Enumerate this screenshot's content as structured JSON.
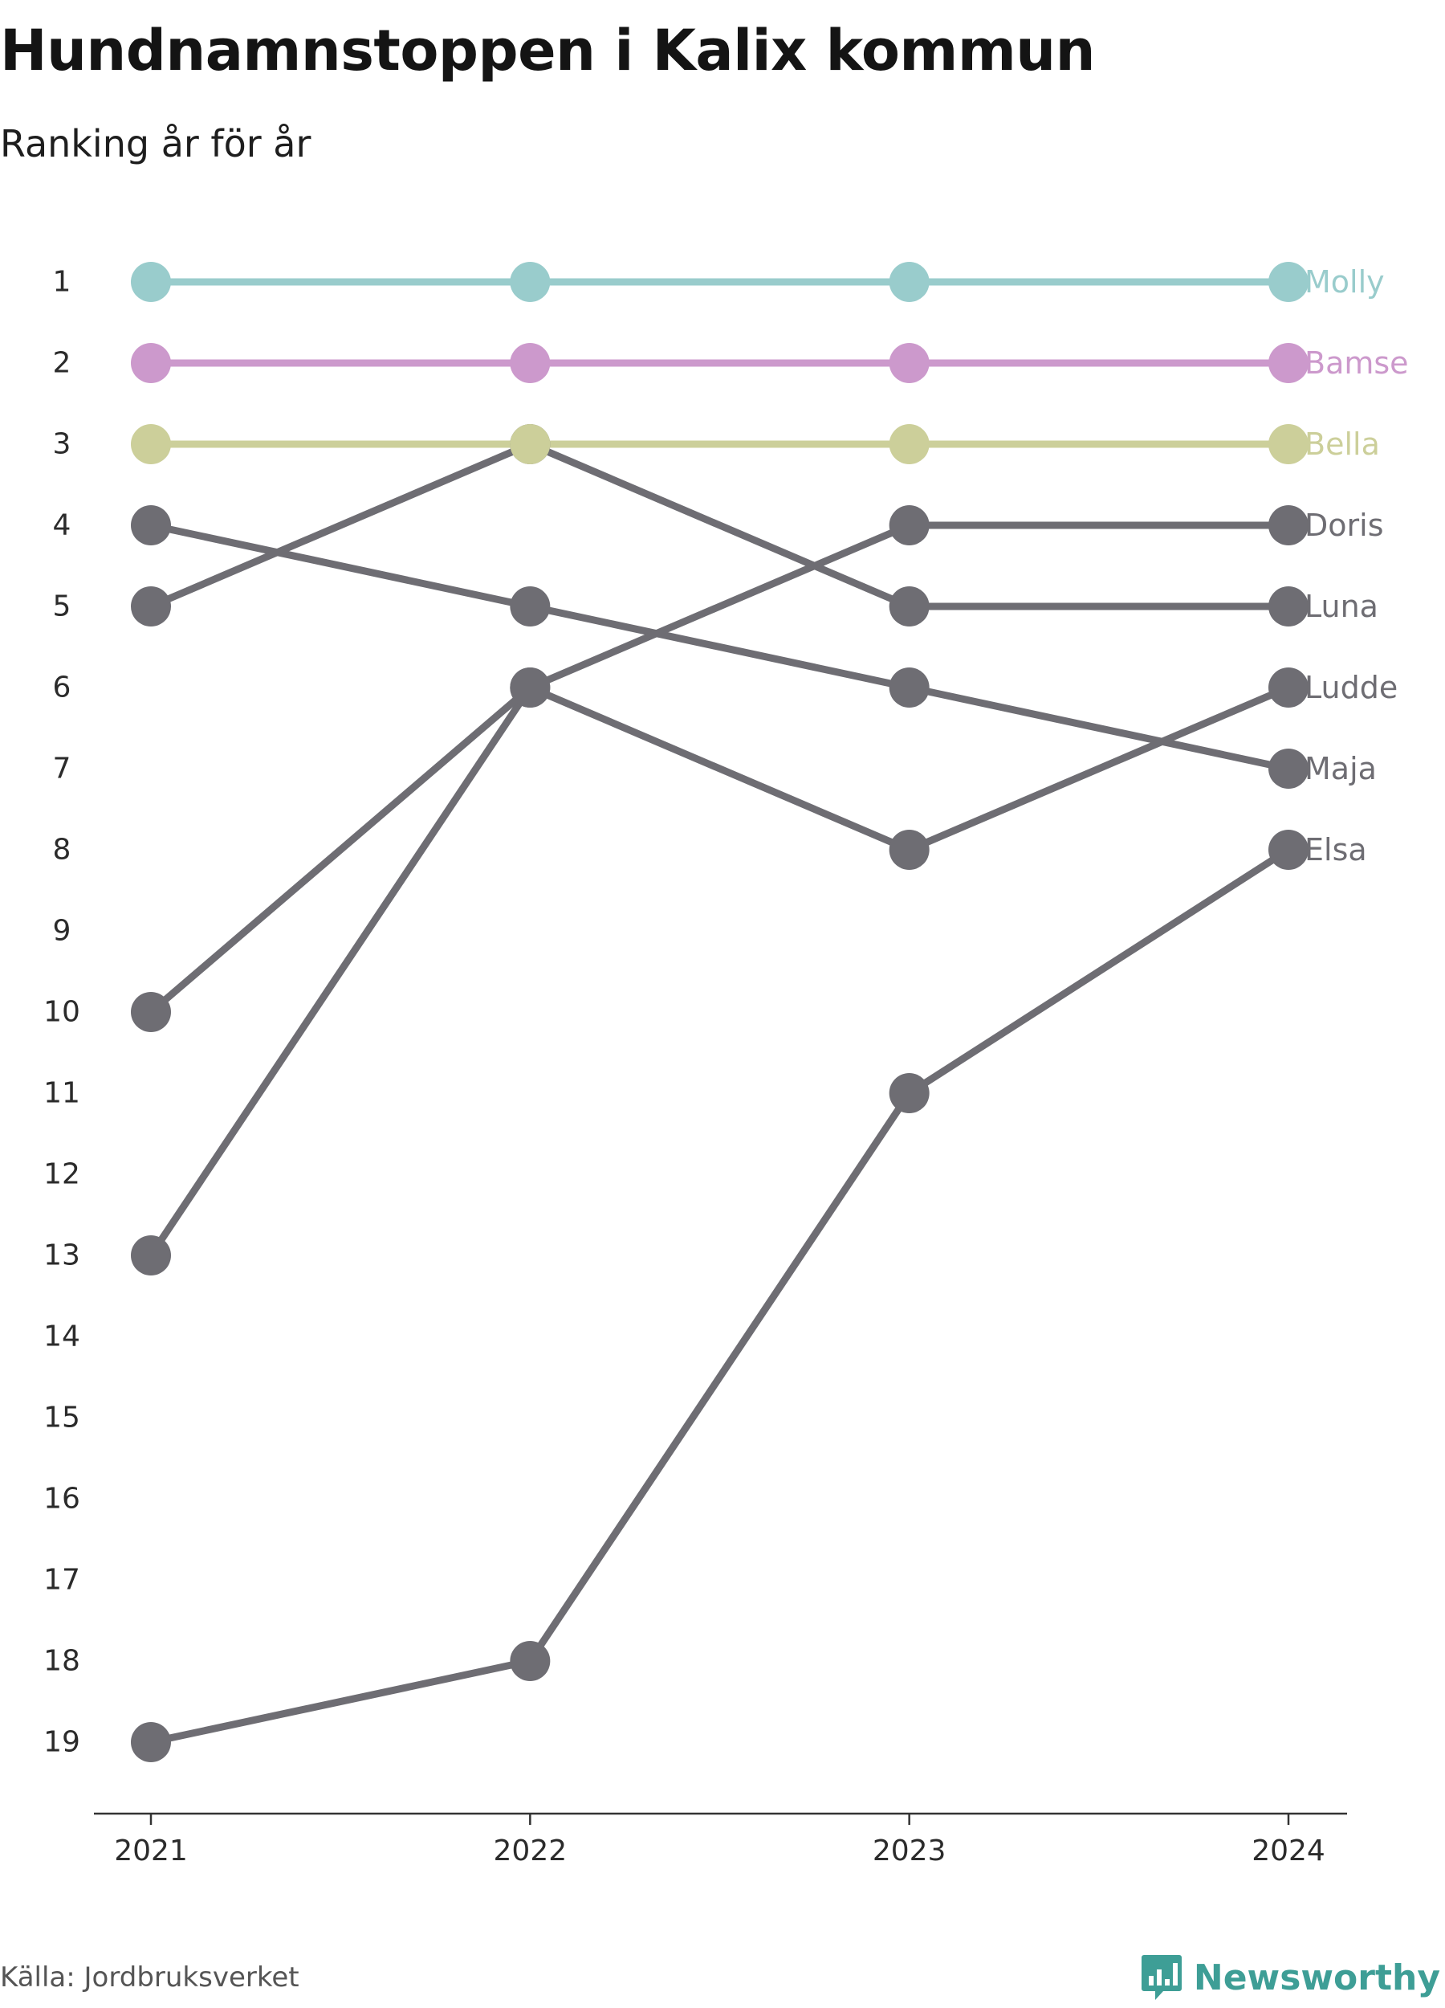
{
  "header": {
    "title": "Hundnamnstoppen i Kalix kommun",
    "subtitle": "Ranking år för år"
  },
  "footer": {
    "source": "Källa: Jordbruksverket",
    "brand": "Newsworthy",
    "brand_color": "#3e9e96"
  },
  "chart_data": {
    "type": "line",
    "x": [
      "2021",
      "2022",
      "2023",
      "2024"
    ],
    "ylim": [
      1,
      19
    ],
    "y_inverted": true,
    "y_ticks": [
      1,
      2,
      3,
      4,
      5,
      6,
      7,
      8,
      9,
      10,
      11,
      12,
      13,
      14,
      15,
      16,
      17,
      18,
      19
    ],
    "grid": false,
    "legend": "direct labels at right end",
    "series": [
      {
        "name": "Elsa",
        "values": [
          19,
          18,
          11,
          8
        ],
        "color": "#6e6d73"
      },
      {
        "name": "Maja",
        "values": [
          4,
          5,
          6,
          7
        ],
        "color": "#6e6d73"
      },
      {
        "name": "Ludde",
        "values": [
          13,
          6,
          8,
          6
        ],
        "color": "#6e6d73"
      },
      {
        "name": "Luna",
        "values": [
          5,
          3,
          5,
          5
        ],
        "color": "#6e6d73"
      },
      {
        "name": "Doris",
        "values": [
          10,
          6,
          4,
          4
        ],
        "color": "#6e6d73"
      },
      {
        "name": "Bella",
        "values": [
          3,
          3,
          3,
          3
        ],
        "color": "#cccf9a"
      },
      {
        "name": "Bamse",
        "values": [
          2,
          2,
          2,
          2
        ],
        "color": "#cc99cc"
      },
      {
        "name": "Molly",
        "values": [
          1,
          1,
          1,
          1
        ],
        "color": "#99cccc"
      }
    ]
  }
}
